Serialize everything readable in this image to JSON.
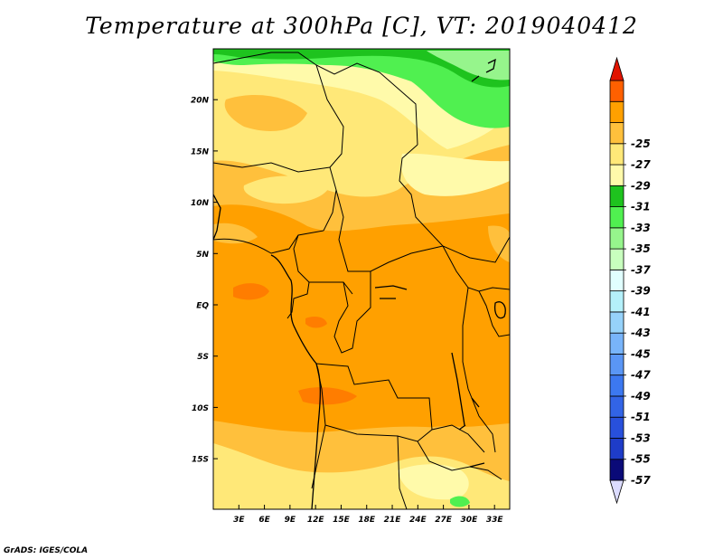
{
  "title": "Temperature at 300hPa [C], VT: 2019040412",
  "credit": "GrADS: IGES/COLA",
  "map": {
    "lat_labels": [
      {
        "lat": 20,
        "text": "20N"
      },
      {
        "lat": 15,
        "text": "15N"
      },
      {
        "lat": 10,
        "text": "10N"
      },
      {
        "lat": 5,
        "text": "5N"
      },
      {
        "lat": 0,
        "text": "EQ"
      },
      {
        "lat": -5,
        "text": "5S"
      },
      {
        "lat": -10,
        "text": "10S"
      },
      {
        "lat": -15,
        "text": "15S"
      }
    ],
    "lon_labels": [
      {
        "lon": 3,
        "text": "3E"
      },
      {
        "lon": 6,
        "text": "6E"
      },
      {
        "lon": 9,
        "text": "9E"
      },
      {
        "lon": 12,
        "text": "12E"
      },
      {
        "lon": 15,
        "text": "15E"
      },
      {
        "lon": 18,
        "text": "18E"
      },
      {
        "lon": 21,
        "text": "21E"
      },
      {
        "lon": 24,
        "text": "24E"
      },
      {
        "lon": 27,
        "text": "27E"
      },
      {
        "lon": 30,
        "text": "30E"
      },
      {
        "lon": 33,
        "text": "33E"
      }
    ]
  },
  "colorbar": {
    "colors": [
      "#dcdcff",
      "#0a0a78",
      "#1e3cc8",
      "#2850dc",
      "#3264e6",
      "#3c78f0",
      "#5a96f5",
      "#78b4fa",
      "#96d2fa",
      "#b4f0fa",
      "#e1ffff",
      "#c8ffbe",
      "#96f58c",
      "#50f050",
      "#1ec31e",
      "#fffaaa",
      "#ffe878",
      "#ffc03c",
      "#ffa000",
      "#ff6000",
      "#e11400"
    ],
    "labels": [
      "-57",
      "-55",
      "-53",
      "-51",
      "-49",
      "-47",
      "-45",
      "-43",
      "-41",
      "-39",
      "-37",
      "-35",
      "-33",
      "-31",
      "-29",
      "-27",
      "-25"
    ]
  }
}
